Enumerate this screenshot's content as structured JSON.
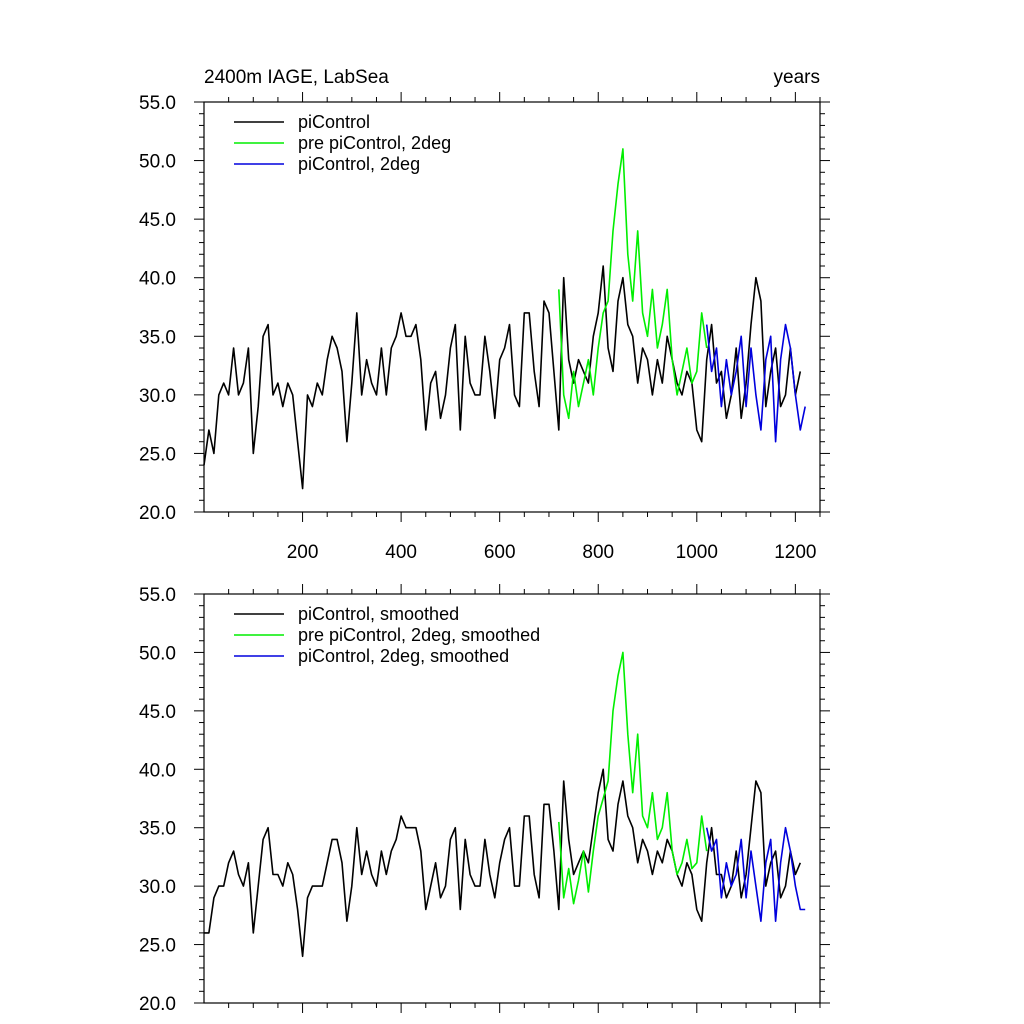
{
  "chart_data": [
    {
      "type": "line",
      "title": "2400m IAGE, LabSea",
      "right_title": "years",
      "xlim": [
        0,
        1250
      ],
      "ylim": [
        20,
        55
      ],
      "x_ticks": [
        200,
        400,
        600,
        800,
        1000,
        1200
      ],
      "x_tick_labels": [
        "200",
        "400",
        "600",
        "800",
        "1000",
        "1200"
      ],
      "y_ticks": [
        20,
        25,
        30,
        35,
        40,
        45,
        50,
        55
      ],
      "y_tick_labels": [
        "20.0",
        "25.0",
        "30.0",
        "35.0",
        "40.0",
        "45.0",
        "50.0",
        "55.0"
      ],
      "legend_position": "top-left",
      "series": [
        {
          "name": "piControl",
          "color": "#000000",
          "x": [
            0,
            10,
            20,
            30,
            40,
            50,
            60,
            70,
            80,
            90,
            100,
            110,
            120,
            130,
            140,
            150,
            160,
            170,
            180,
            190,
            200,
            210,
            220,
            230,
            240,
            250,
            260,
            270,
            280,
            290,
            300,
            310,
            320,
            330,
            340,
            350,
            360,
            370,
            380,
            390,
            400,
            410,
            420,
            430,
            440,
            450,
            460,
            470,
            480,
            490,
            500,
            510,
            520,
            530,
            540,
            550,
            560,
            570,
            580,
            590,
            600,
            610,
            620,
            630,
            640,
            650,
            660,
            670,
            680,
            690,
            700,
            710,
            720,
            730,
            740,
            750,
            760,
            770,
            780,
            790,
            800,
            810,
            820,
            830,
            840,
            850,
            860,
            870,
            880,
            890,
            900,
            910,
            920,
            930,
            940,
            950,
            960,
            970,
            980,
            990,
            1000,
            1010,
            1020,
            1030,
            1040,
            1050,
            1060,
            1070,
            1080,
            1090,
            1100,
            1110,
            1120,
            1130,
            1140,
            1150,
            1160,
            1170,
            1180,
            1190,
            1200,
            1210
          ],
          "values": [
            24,
            27,
            25,
            30,
            31,
            30,
            34,
            30,
            31,
            34,
            25,
            29,
            35,
            36,
            30,
            31,
            29,
            31,
            30,
            26,
            22,
            30,
            29,
            31,
            30,
            33,
            35,
            34,
            32,
            26,
            31,
            37,
            30,
            33,
            31,
            30,
            34,
            30,
            34,
            35,
            37,
            35,
            35,
            36,
            33,
            27,
            31,
            32,
            28,
            30,
            34,
            36,
            27,
            35,
            31,
            30,
            30,
            35,
            32,
            28,
            33,
            34,
            36,
            30,
            29,
            37,
            37,
            32,
            29,
            38,
            37,
            32,
            27,
            40,
            33,
            31,
            33,
            32,
            31,
            35,
            37,
            41,
            34,
            32,
            38,
            40,
            36,
            35,
            31,
            34,
            33,
            30,
            33,
            31,
            35,
            33,
            31,
            30,
            32,
            31,
            27,
            26,
            33,
            36,
            31,
            32,
            28,
            30,
            34,
            28,
            31,
            36,
            40,
            38,
            29,
            32,
            34,
            29,
            30,
            34,
            30,
            32
          ]
        },
        {
          "name": "pre piControl, 2deg",
          "color": "#00ee00",
          "x": [
            720,
            730,
            740,
            750,
            760,
            770,
            780,
            790,
            800,
            810,
            820,
            830,
            840,
            850,
            860,
            870,
            880,
            890,
            900,
            910,
            920,
            930,
            940,
            950,
            960,
            970,
            980,
            990,
            1000,
            1010,
            1020
          ],
          "values": [
            39,
            30,
            28,
            32,
            29,
            31,
            33,
            30,
            34,
            37,
            38,
            44,
            48,
            51,
            42,
            38,
            44,
            37,
            35,
            39,
            34,
            36,
            39,
            33,
            30,
            32,
            34,
            31,
            32,
            37,
            34
          ]
        },
        {
          "name": "piControl, 2deg",
          "color": "#0000dd",
          "x": [
            1020,
            1030,
            1040,
            1050,
            1060,
            1070,
            1080,
            1090,
            1100,
            1110,
            1120,
            1130,
            1140,
            1150,
            1160,
            1170,
            1180,
            1190,
            1200,
            1210,
            1220
          ],
          "values": [
            36,
            32,
            34,
            29,
            33,
            30,
            32,
            35,
            29,
            34,
            30,
            27,
            33,
            35,
            26,
            33,
            36,
            34,
            30,
            27,
            29
          ]
        }
      ]
    },
    {
      "type": "line",
      "xlim": [
        0,
        1250
      ],
      "ylim": [
        20,
        55
      ],
      "y_ticks": [
        20,
        25,
        30,
        35,
        40,
        45,
        50,
        55
      ],
      "y_tick_labels": [
        "20.0",
        "25.0",
        "30.0",
        "35.0",
        "40.0",
        "45.0",
        "50.0",
        "55.0"
      ],
      "legend_position": "top-left",
      "series": [
        {
          "name": "piControl, smoothed",
          "color": "#000000",
          "x": [
            0,
            10,
            20,
            30,
            40,
            50,
            60,
            70,
            80,
            90,
            100,
            110,
            120,
            130,
            140,
            150,
            160,
            170,
            180,
            190,
            200,
            210,
            220,
            230,
            240,
            250,
            260,
            270,
            280,
            290,
            300,
            310,
            320,
            330,
            340,
            350,
            360,
            370,
            380,
            390,
            400,
            410,
            420,
            430,
            440,
            450,
            460,
            470,
            480,
            490,
            500,
            510,
            520,
            530,
            540,
            550,
            560,
            570,
            580,
            590,
            600,
            610,
            620,
            630,
            640,
            650,
            660,
            670,
            680,
            690,
            700,
            710,
            720,
            730,
            740,
            750,
            760,
            770,
            780,
            790,
            800,
            810,
            820,
            830,
            840,
            850,
            860,
            870,
            880,
            890,
            900,
            910,
            920,
            930,
            940,
            950,
            960,
            970,
            980,
            990,
            1000,
            1010,
            1020,
            1030,
            1040,
            1050,
            1060,
            1070,
            1080,
            1090,
            1100,
            1110,
            1120,
            1130,
            1140,
            1150,
            1160,
            1170,
            1180,
            1190,
            1200,
            1210
          ],
          "values": [
            26,
            26,
            29,
            30,
            30,
            32,
            33,
            31,
            30,
            32,
            26,
            30,
            34,
            35,
            31,
            31,
            30,
            32,
            31,
            28,
            24,
            29,
            30,
            30,
            30,
            32,
            34,
            34,
            32,
            27,
            30,
            35,
            31,
            33,
            31,
            30,
            33,
            31,
            33,
            34,
            36,
            35,
            35,
            35,
            33,
            28,
            30,
            32,
            29,
            30,
            34,
            35,
            28,
            34,
            31,
            30,
            30,
            34,
            31,
            29,
            32,
            34,
            35,
            30,
            30,
            36,
            36,
            31,
            29,
            37,
            37,
            33,
            28,
            39,
            34,
            31,
            32,
            33,
            32,
            35,
            38,
            40,
            34,
            33,
            37,
            39,
            36,
            35,
            32,
            34,
            33,
            31,
            33,
            32,
            34,
            33,
            31,
            30,
            32,
            31,
            28,
            27,
            32,
            35,
            31,
            31,
            29,
            30,
            33,
            29,
            31,
            35,
            39,
            38,
            30,
            32,
            33,
            29,
            30,
            33,
            31,
            32
          ]
        },
        {
          "name": "pre piControl, 2deg, smoothed",
          "color": "#00ee00",
          "x": [
            720,
            730,
            740,
            750,
            760,
            770,
            780,
            790,
            800,
            810,
            820,
            830,
            840,
            850,
            860,
            870,
            880,
            890,
            900,
            910,
            920,
            930,
            940,
            950,
            960,
            970,
            980,
            990,
            1000,
            1010,
            1020
          ],
          "values": [
            35.5,
            29,
            31.5,
            28.5,
            30.5,
            33,
            29.5,
            33,
            36,
            37.5,
            39,
            45,
            48,
            50,
            43,
            38,
            43,
            36,
            35,
            38,
            34,
            35,
            38,
            33,
            31,
            32,
            34,
            31.5,
            32,
            36,
            33
          ]
        },
        {
          "name": "piControl, 2deg, smoothed",
          "color": "#0000dd",
          "x": [
            1020,
            1030,
            1040,
            1050,
            1060,
            1070,
            1080,
            1090,
            1100,
            1110,
            1120,
            1130,
            1140,
            1150,
            1160,
            1170,
            1180,
            1190,
            1200,
            1210,
            1220
          ],
          "values": [
            35,
            33,
            34,
            29,
            32,
            30,
            31,
            34,
            29,
            33,
            30,
            27,
            32,
            34,
            27,
            32,
            35,
            33,
            30,
            28,
            28
          ]
        }
      ]
    }
  ]
}
